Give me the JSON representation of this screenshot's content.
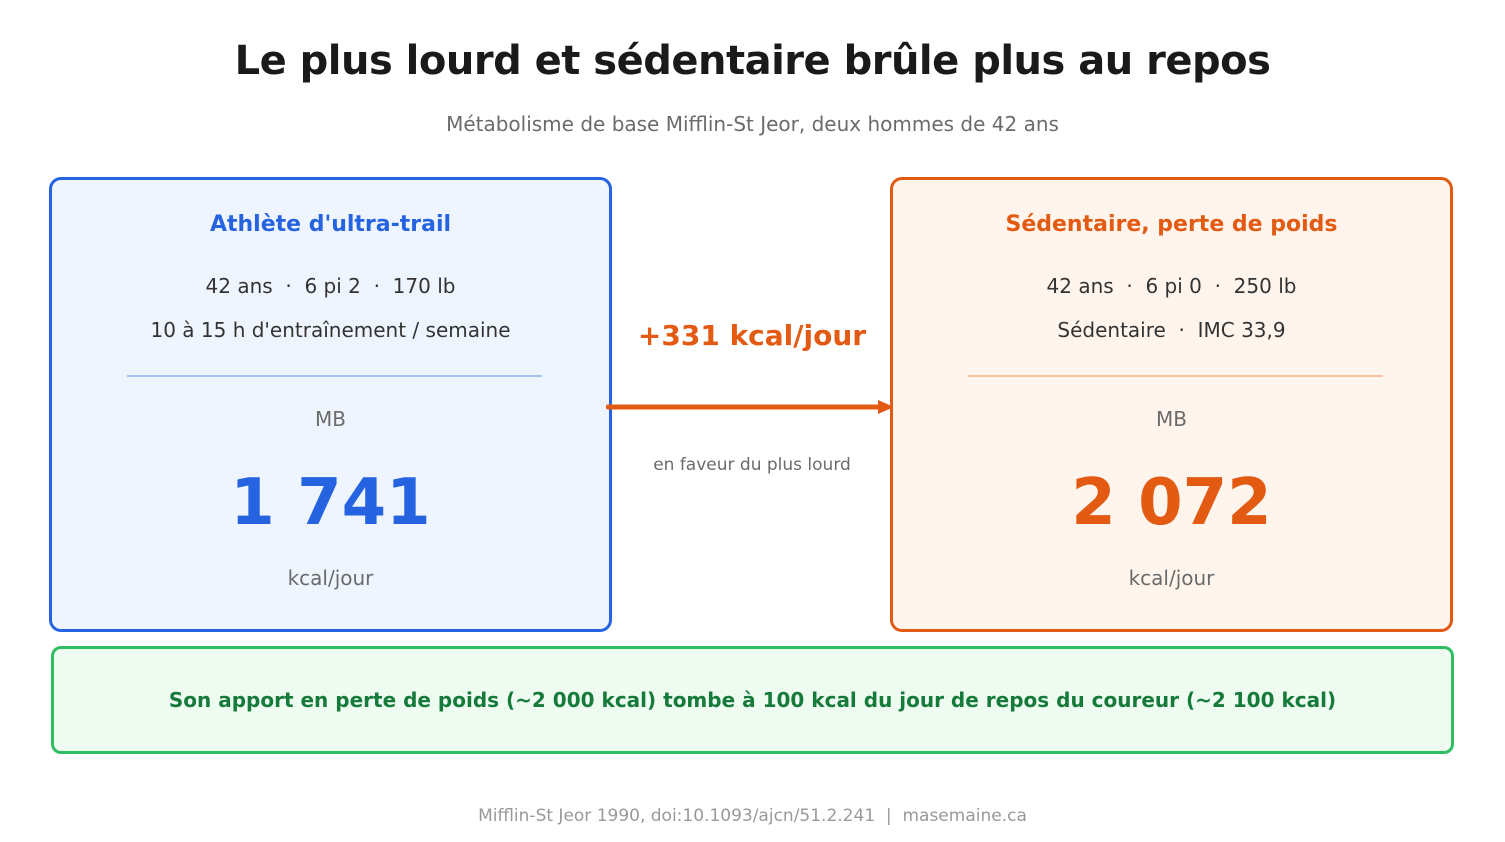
{
  "title": "Le plus lourd et sédentaire brûle plus au repos",
  "subtitle": "Métabolisme de base Mifflin-St Jeor, deux hommes de 42 ans",
  "colors": {
    "left_accent": "#2563e0",
    "right_accent": "#e35a12",
    "banner_accent": "#2fbf62",
    "banner_text": "#157a3a"
  },
  "left_card": {
    "title": "Athlète d'ultra-trail",
    "line1": "42 ans  ·  6 pi 2  ·  170 lb",
    "line2": "10 à 15 h d'entraînement / semaine",
    "label": "MB",
    "value": "1 741",
    "unit": "kcal/jour"
  },
  "right_card": {
    "title": "Sédentaire, perte de poids",
    "line1": "42 ans  ·  6 pi 0  ·  250 lb",
    "line2": "Sédentaire  ·  IMC 33,9",
    "label": "MB",
    "value": "2 072",
    "unit": "kcal/jour"
  },
  "difference": {
    "value": "+331 kcal/jour",
    "note": "en faveur du plus lourd"
  },
  "banner": {
    "text": "Son apport en perte de poids (~2 000 kcal) tombe à 100 kcal du jour de repos du coureur (~2 100 kcal)"
  },
  "footer": "Mifflin-St Jeor 1990, doi:10.1093/ajcn/51.2.241  |  masemaine.ca"
}
